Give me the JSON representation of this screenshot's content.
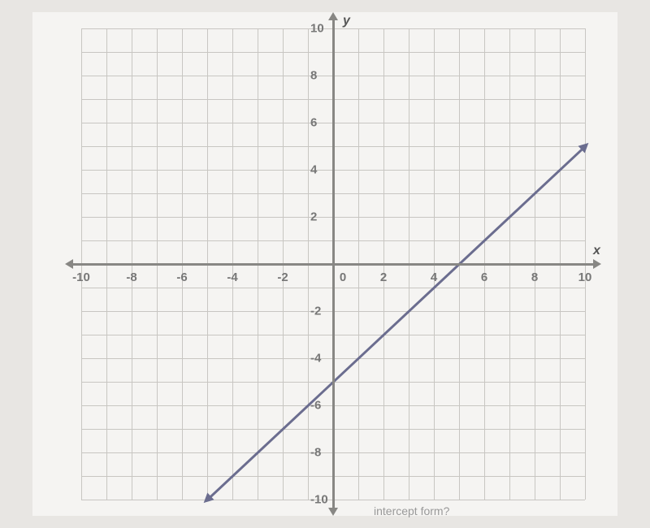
{
  "chart": {
    "type": "line",
    "xlim": [
      -10,
      10
    ],
    "ylim": [
      -10,
      10
    ],
    "xtick_step": 1,
    "ytick_step": 1,
    "xlabels": [
      -10,
      -8,
      -6,
      -4,
      -2,
      0,
      2,
      4,
      6,
      8,
      10
    ],
    "ylabels": [
      -10,
      -8,
      -6,
      -4,
      -2,
      2,
      4,
      6,
      8,
      10
    ],
    "x_axis_label": "x",
    "y_axis_label": "y",
    "grid_color": "#c8c6c2",
    "axis_color": "#888784",
    "background_color": "#f5f4f2",
    "line_color": "#6b6d8f",
    "line_points": [
      {
        "x": -5,
        "y": -10
      },
      {
        "x": 10,
        "y": 5
      }
    ],
    "slope": 1,
    "y_intercept": -5,
    "bottom_text": "intercept form?"
  }
}
